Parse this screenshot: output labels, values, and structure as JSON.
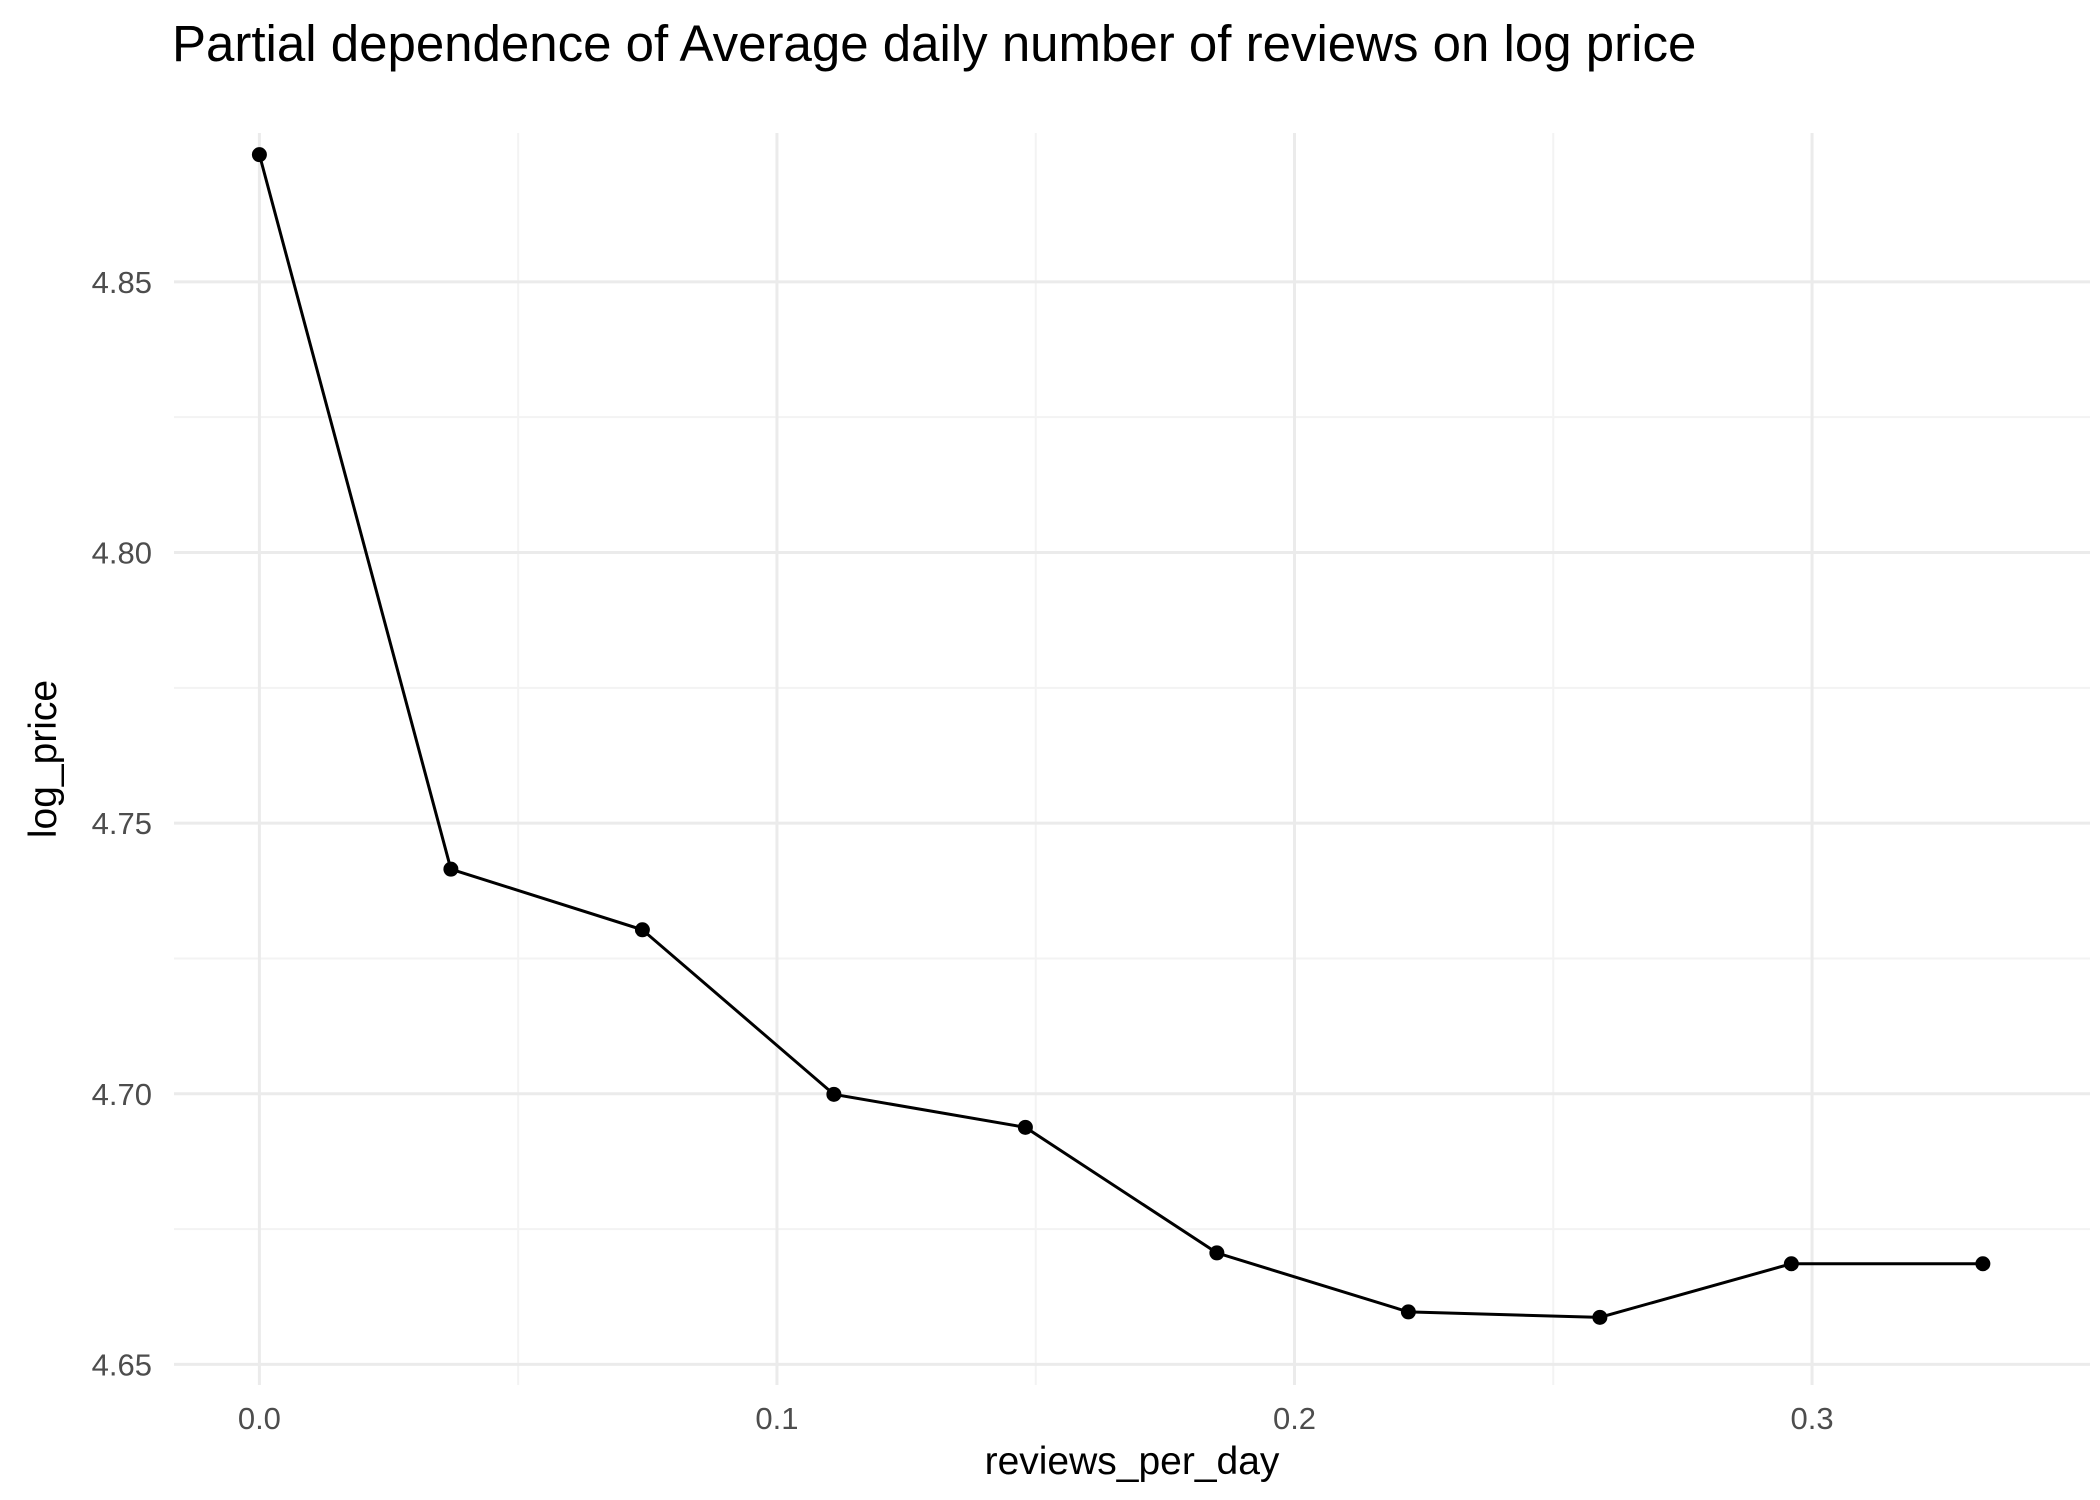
{
  "chart_data": {
    "type": "line",
    "title": "Partial dependence of Average daily number of reviews on log price",
    "xlabel": "reviews_per_day",
    "ylabel": "log_price",
    "xlim": [
      -0.0165,
      0.3537
    ],
    "ylim": [
      4.6462,
      4.8775
    ],
    "x_ticks": [
      0.0,
      0.1,
      0.2,
      0.3
    ],
    "x_tick_labels": [
      "0.0",
      "0.1",
      "0.2",
      "0.3"
    ],
    "x_minor_ticks": [
      0.05,
      0.15,
      0.25
    ],
    "y_ticks": [
      4.65,
      4.7,
      4.75,
      4.8,
      4.85
    ],
    "y_tick_labels": [
      "4.65",
      "4.70",
      "4.75",
      "4.80",
      "4.85"
    ],
    "y_minor_ticks": [
      4.675,
      4.725,
      4.775,
      4.825
    ],
    "grid": true,
    "legend": "none",
    "series": [
      {
        "x": [
          0.0,
          0.037,
          0.074,
          0.111,
          0.148,
          0.185,
          0.222,
          0.259,
          0.296,
          0.333
        ],
        "y": [
          4.8735,
          4.7415,
          4.7303,
          4.6999,
          4.6938,
          4.6706,
          4.6597,
          4.6587,
          4.6686,
          4.6686
        ],
        "color": "#000000"
      }
    ]
  }
}
